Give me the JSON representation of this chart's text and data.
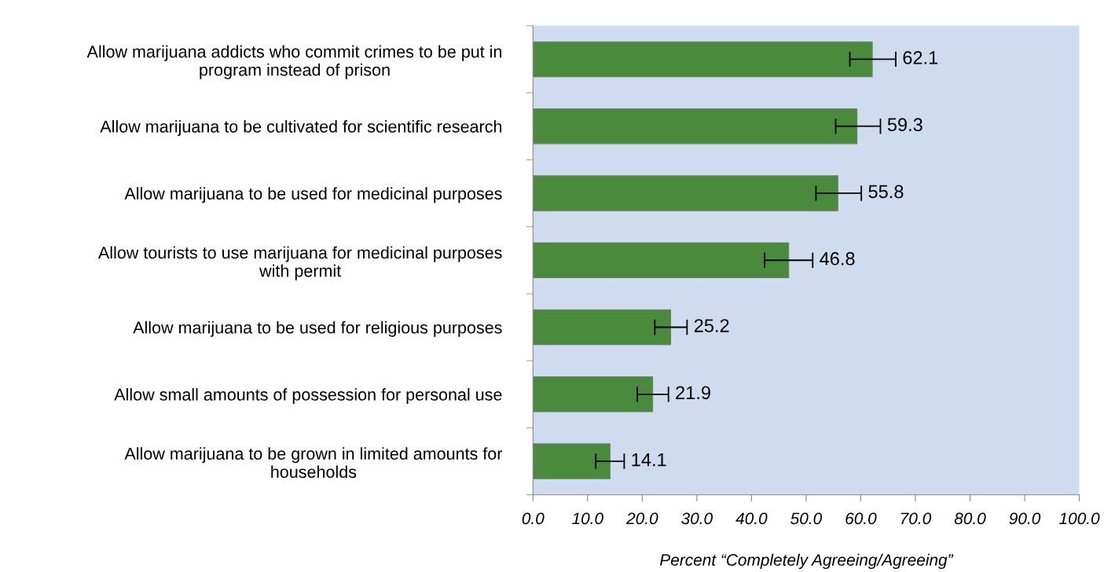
{
  "chart_data": {
    "type": "bar",
    "orientation": "horizontal",
    "categories": [
      "Allow marijuana addicts who commit crimes to be put in\nprogram instead of prison",
      "Allow marijuana to be cultivated for scientific research",
      "Allow marijuana to be used for medicinal purposes",
      "Allow tourists to use marijuana for medicinal purposes\nwith permit",
      "Allow marijuana to be used for religious purposes",
      "Allow small amounts of possession for personal use",
      "Allow marijuana to be grown in limited amounts for\nhouseholds"
    ],
    "values": [
      62.1,
      59.3,
      55.8,
      46.8,
      25.2,
      21.9,
      14.1
    ],
    "errors": [
      [
        58.0,
        66.4
      ],
      [
        55.4,
        63.6
      ],
      [
        51.8,
        60.1
      ],
      [
        42.4,
        51.2
      ],
      [
        22.3,
        28.2
      ],
      [
        19.1,
        24.8
      ],
      [
        11.5,
        16.7
      ]
    ],
    "color": "#4a8a3c",
    "data_labels": true,
    "xlabel": "Percent “Completely Agreeing/Agreeing”",
    "xlim": [
      0,
      100
    ],
    "xticks": [
      {
        "value": 0,
        "label": "0.0"
      },
      {
        "value": 10,
        "label": "10.0"
      },
      {
        "value": 20,
        "label": "20.0"
      },
      {
        "value": 30,
        "label": "30.0"
      },
      {
        "value": 40,
        "label": "40.0"
      },
      {
        "value": 50,
        "label": "50.0"
      },
      {
        "value": 60,
        "label": "60.0"
      },
      {
        "value": 70,
        "label": "70.0"
      },
      {
        "value": 80,
        "label": "80.0"
      },
      {
        "value": 90,
        "label": "90.0"
      },
      {
        "value": 100,
        "label": "100.0"
      }
    ],
    "grid": false,
    "legend": false
  }
}
